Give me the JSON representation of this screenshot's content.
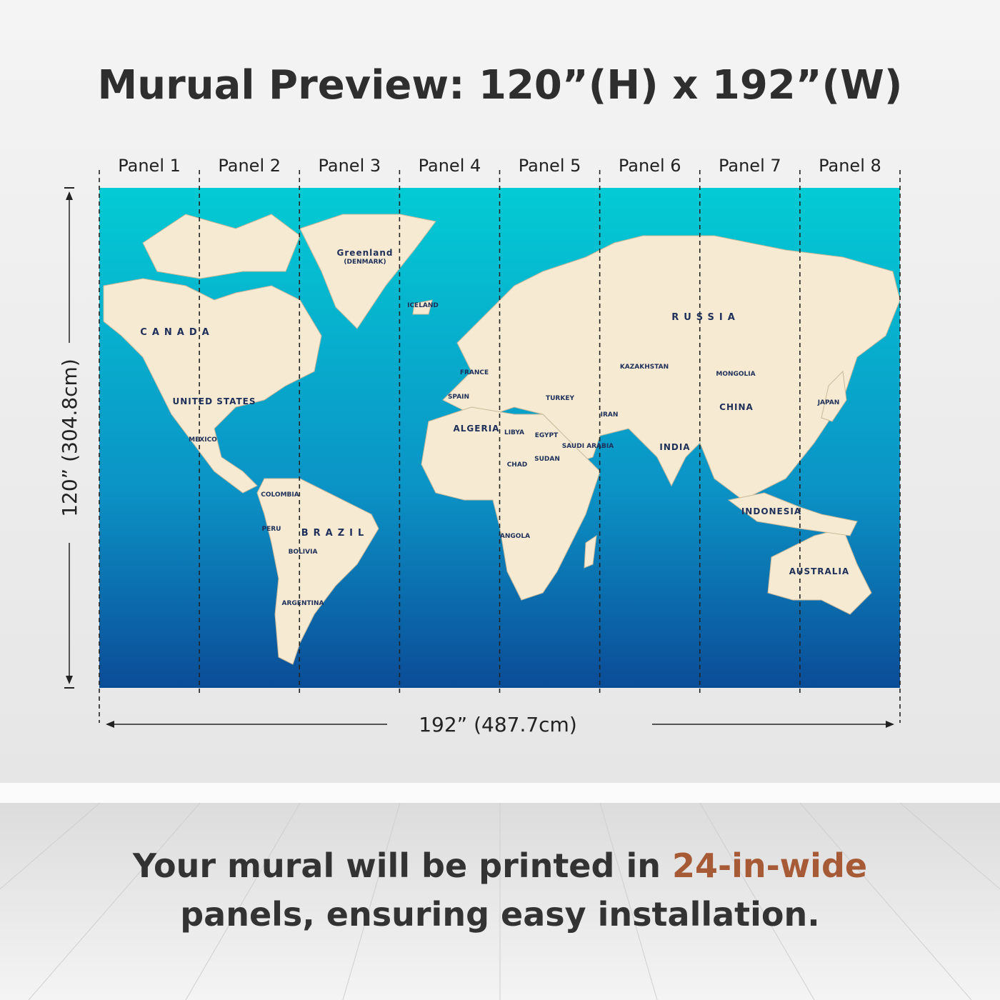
{
  "header": {
    "title": "Murual Preview: 120”(H) x 192”(W)"
  },
  "panels": [
    "Panel 1",
    "Panel 2",
    "Panel 3",
    "Panel 4",
    "Panel 5",
    "Panel 6",
    "Panel 7",
    "Panel 8"
  ],
  "dimensions": {
    "height": "120” (304.8cm)",
    "width": "192” (487.7cm)"
  },
  "map": {
    "labels": [
      "Greenland",
      "(DENMARK)",
      "CANADA",
      "UNITED STATES",
      "MEXICO",
      "BRAZIL",
      "COLOMBIA",
      "PERU",
      "BOLIVIA",
      "ARGENTINA",
      "RUSSIA",
      "KAZAKHSTAN",
      "MONGOLIA",
      "CHINA",
      "INDIA",
      "IRAN",
      "TURKEY",
      "FRANCE",
      "SPAIN",
      "ICELAND",
      "ALGERIA",
      "LIBYA",
      "EGYPT",
      "CHAD",
      "SUDAN",
      "SAUDI ARABIA",
      "ANGOLA",
      "JAPAN",
      "INDONESIA",
      "AUSTRALIA"
    ]
  },
  "footer": {
    "line1": "Your mural will be printed in",
    "highlight": "24-in-wide",
    "line2": "panels, ensuring easy installation."
  }
}
